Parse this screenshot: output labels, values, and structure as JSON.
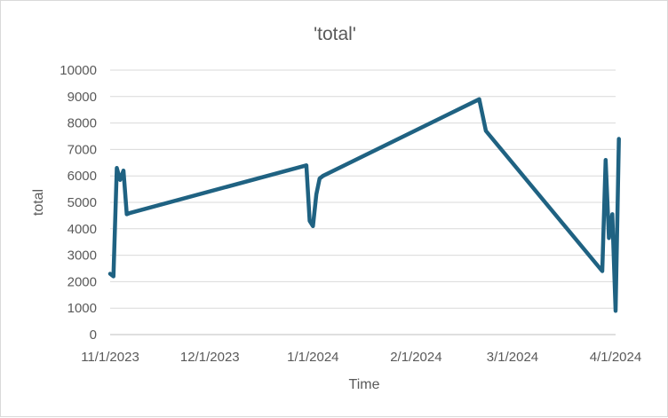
{
  "chart_data": {
    "type": "line",
    "title": "'total'",
    "xlabel": "Time",
    "ylabel": "total",
    "ylim": [
      0,
      10000
    ],
    "yticks": [
      0,
      1000,
      2000,
      3000,
      4000,
      5000,
      6000,
      7000,
      8000,
      9000,
      10000
    ],
    "xlim": [
      "2023-11-01",
      "2024-04-01"
    ],
    "xticks": [
      "11/1/2023",
      "12/1/2023",
      "1/1/2024",
      "2/1/2024",
      "3/1/2024",
      "4/1/2024"
    ],
    "xtick_dates": [
      "2023-11-01",
      "2023-12-01",
      "2024-01-01",
      "2024-02-01",
      "2024-03-01",
      "2024-04-01"
    ],
    "grid": true,
    "legend": "none",
    "line_color": "#1F6282",
    "series": [
      {
        "x": [
          "2023-11-01",
          "2023-11-02",
          "2023-11-03",
          "2023-11-04",
          "2023-11-05",
          "2023-11-06",
          "2023-11-07",
          "2023-12-30",
          "2023-12-31",
          "2024-01-01",
          "2024-01-02",
          "2024-01-03",
          "2024-01-04",
          "2024-02-20",
          "2024-02-22",
          "2024-03-28",
          "2024-03-29",
          "2024-03-30",
          "2024-03-31",
          "2024-04-01",
          "2024-04-02"
        ],
        "y": [
          2300,
          2200,
          6300,
          5850,
          6200,
          4550,
          4600,
          6400,
          4300,
          4100,
          5300,
          5900,
          6000,
          8900,
          7700,
          2400,
          6600,
          3650,
          4550,
          900,
          7400
        ]
      }
    ]
  }
}
